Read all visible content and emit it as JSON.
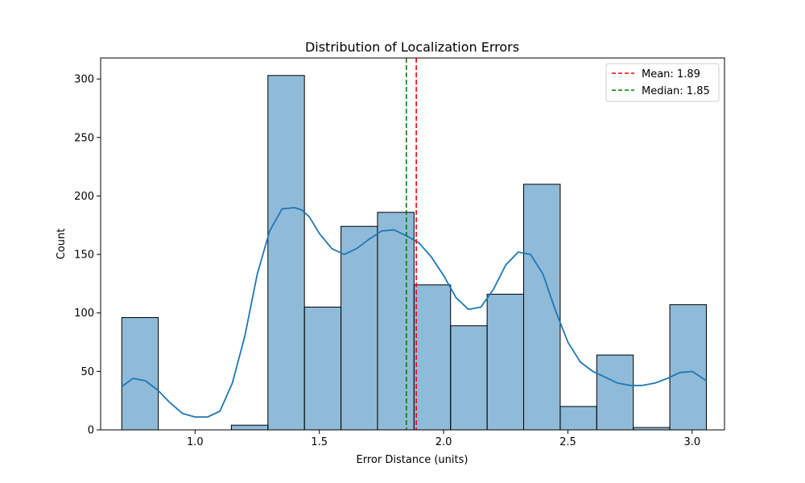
{
  "chart_data": {
    "type": "bar",
    "title": "Distribution of Localization Errors",
    "xlabel": "Error Distance (units)",
    "ylabel": "Count",
    "xlim": [
      0.62,
      3.13
    ],
    "ylim": [
      0,
      318
    ],
    "xticks": [
      1.0,
      1.5,
      2.0,
      2.5,
      3.0
    ],
    "xtick_labels": [
      "1.0",
      "1.5",
      "2.0",
      "2.5",
      "3.0"
    ],
    "yticks": [
      0,
      50,
      100,
      150,
      200,
      250,
      300
    ],
    "ytick_labels": [
      "0",
      "50",
      "100",
      "150",
      "200",
      "250",
      "300"
    ],
    "bar_color": "#1f77b4",
    "bar_alpha": 0.5,
    "bars": [
      {
        "x0": 0.705,
        "x1": 0.852,
        "value": 96
      },
      {
        "x0": 0.852,
        "x1": 0.999,
        "value": 0
      },
      {
        "x0": 0.999,
        "x1": 1.146,
        "value": 0
      },
      {
        "x0": 1.146,
        "x1": 1.293,
        "value": 4
      },
      {
        "x0": 1.293,
        "x1": 1.44,
        "value": 303
      },
      {
        "x0": 1.44,
        "x1": 1.587,
        "value": 105
      },
      {
        "x0": 1.587,
        "x1": 1.734,
        "value": 174
      },
      {
        "x0": 1.734,
        "x1": 1.881,
        "value": 186
      },
      {
        "x0": 1.881,
        "x1": 2.028,
        "value": 124
      },
      {
        "x0": 2.028,
        "x1": 2.175,
        "value": 89
      },
      {
        "x0": 2.175,
        "x1": 2.322,
        "value": 116
      },
      {
        "x0": 2.322,
        "x1": 2.469,
        "value": 210
      },
      {
        "x0": 2.469,
        "x1": 2.616,
        "value": 20
      },
      {
        "x0": 2.616,
        "x1": 2.763,
        "value": 64
      },
      {
        "x0": 2.763,
        "x1": 2.91,
        "value": 2
      },
      {
        "x0": 2.91,
        "x1": 3.057,
        "value": 107
      }
    ],
    "kde": {
      "color": "#1f77b4",
      "x": [
        0.705,
        0.75,
        0.8,
        0.85,
        0.9,
        0.95,
        1.0,
        1.05,
        1.1,
        1.15,
        1.2,
        1.25,
        1.3,
        1.35,
        1.4,
        1.43,
        1.46,
        1.5,
        1.55,
        1.6,
        1.65,
        1.7,
        1.75,
        1.8,
        1.85,
        1.9,
        1.95,
        2.0,
        2.05,
        2.1,
        2.15,
        2.2,
        2.25,
        2.3,
        2.35,
        2.4,
        2.45,
        2.5,
        2.55,
        2.6,
        2.65,
        2.7,
        2.75,
        2.8,
        2.85,
        2.9,
        2.95,
        3.0,
        3.057
      ],
      "y": [
        37,
        44,
        42,
        34,
        23,
        14,
        11,
        11,
        16,
        40,
        80,
        133,
        170,
        189,
        190,
        188,
        182,
        168,
        155,
        150,
        155,
        163,
        170,
        171,
        166,
        160,
        148,
        132,
        113,
        103,
        105,
        120,
        141,
        152,
        150,
        133,
        102,
        75,
        58,
        50,
        45,
        40,
        38,
        38,
        40,
        44,
        49,
        50,
        42
      ]
    },
    "mean": {
      "value": 1.89,
      "color": "#ff0000",
      "label": "Mean: 1.89"
    },
    "median": {
      "value": 1.85,
      "color": "#008000",
      "label": "Median: 1.85"
    },
    "legend_position": "top-right"
  }
}
